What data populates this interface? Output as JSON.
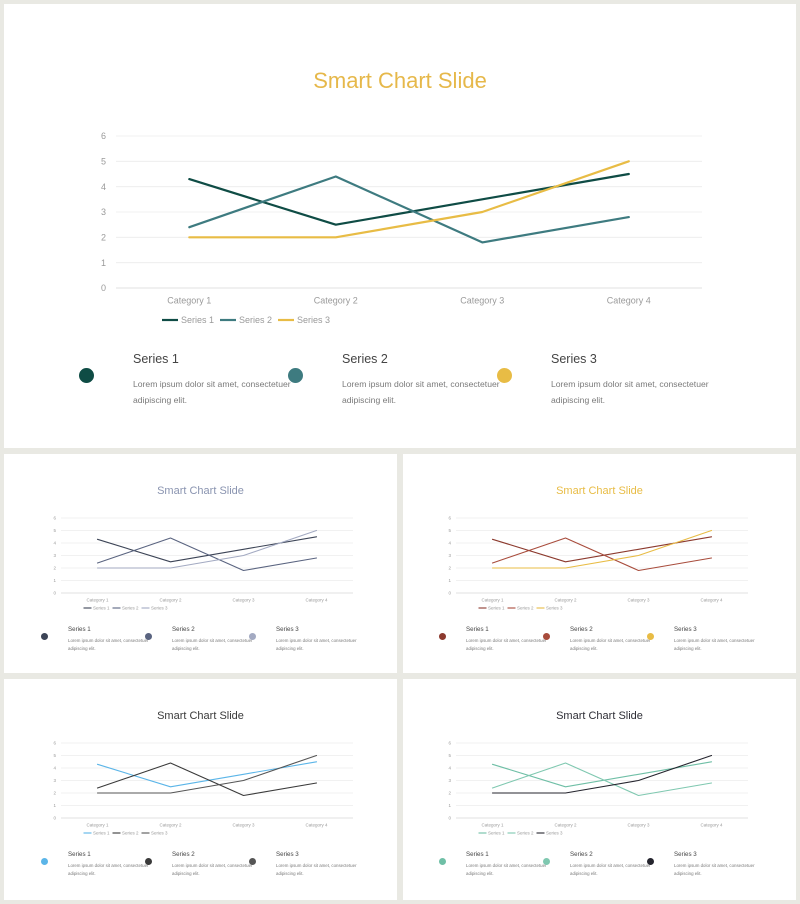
{
  "chart_data": {
    "type": "line",
    "categories": [
      "Category 1",
      "Category 2",
      "Category 3",
      "Category 4"
    ],
    "series": [
      {
        "name": "Series 1",
        "values": [
          4.3,
          2.5,
          3.5,
          4.5
        ]
      },
      {
        "name": "Series 2",
        "values": [
          2.4,
          4.4,
          1.8,
          2.8
        ]
      },
      {
        "name": "Series 3",
        "values": [
          2.0,
          2.0,
          3.0,
          5.0
        ]
      }
    ],
    "ylim": [
      0,
      6
    ],
    "yticks": [
      "0",
      "1",
      "2",
      "3",
      "4",
      "5",
      "6"
    ],
    "grid": true,
    "legend": "bottom"
  },
  "slides": [
    {
      "title": "Smart Chart Slide",
      "title_color": "#e6b84a",
      "colors": [
        "#0f4c45",
        "#3e7b80",
        "#e8bc45"
      ]
    },
    {
      "title": "Smart Chart Slide",
      "title_color": "#8a94b0",
      "colors": [
        "#3c4456",
        "#5a6480",
        "#a3aac2"
      ]
    },
    {
      "title": "Smart Chart Slide",
      "title_color": "#e8bc45",
      "colors": [
        "#8c3a2e",
        "#a84c3c",
        "#e8bc45"
      ]
    },
    {
      "title": "Smart Chart Slide",
      "title_color": "#3a3a3a",
      "colors": [
        "#5bb5e8",
        "#3a3a3a",
        "#555555"
      ]
    },
    {
      "title": "Smart Chart Slide",
      "title_color": "#2e2e36",
      "colors": [
        "#6fbfa6",
        "#7fc8b0",
        "#25252e"
      ]
    }
  ],
  "descriptions": [
    {
      "name": "Series 1",
      "text": "Lorem ipsum dolor sit amet, consectetuer adipiscing elit."
    },
    {
      "name": "Series 2",
      "text": "Lorem ipsum dolor sit amet, consectetuer adipiscing elit."
    },
    {
      "name": "Series 3",
      "text": "Lorem ipsum dolor sit amet, consectetuer adipiscing elit."
    }
  ]
}
